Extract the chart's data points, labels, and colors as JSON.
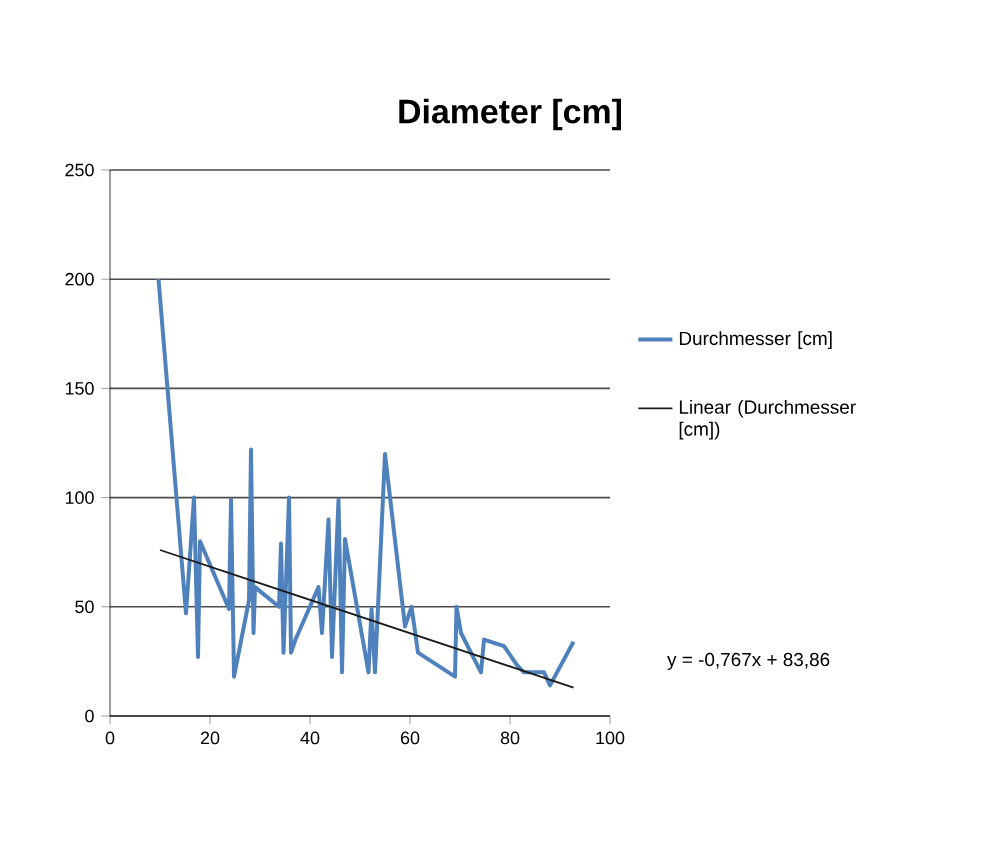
{
  "chart_data": {
    "type": "line",
    "title": "Diameter [cm]",
    "xlim": [
      0,
      100
    ],
    "xticks": [
      0,
      20,
      40,
      60,
      80,
      100
    ],
    "ylim": [
      0,
      250
    ],
    "yticks": [
      0,
      50,
      100,
      150,
      200,
      250
    ],
    "grid": "y",
    "legend": "right",
    "marker": "none",
    "annotations": [
      "y = -0,767x + 83,86"
    ],
    "series": [
      {
        "name": "Durchmesser [cm]",
        "color": "#4f81bd",
        "x": [
          9.7,
          15.2,
          16.8,
          17.6,
          18,
          23.8,
          24.2,
          24.8,
          27.8,
          28.2,
          28.7,
          29,
          33.8,
          34.2,
          34.7,
          35.8,
          36.2,
          37.1,
          41.7,
          42.4,
          43.7,
          44.4,
          45.7,
          46.4,
          47,
          51.7,
          52.3,
          53,
          55,
          59,
          60.3,
          61.6,
          69,
          69.3,
          70.2,
          74.2,
          74.8,
          78.8,
          81.5,
          82.8,
          86.8,
          88,
          92.7
        ],
        "values": [
          200,
          47,
          100,
          27,
          80,
          49,
          99,
          18,
          53,
          122,
          38,
          59,
          50,
          79,
          29,
          100,
          29,
          35,
          59,
          38,
          90,
          27,
          99,
          20,
          81,
          20,
          49,
          20,
          120,
          41,
          50,
          29,
          18,
          50,
          38,
          20,
          35,
          32,
          23,
          20,
          20,
          14,
          34
        ]
      },
      {
        "name": "Linear (Durchmesser [cm])",
        "color": "#1a1a1a",
        "type": "line",
        "x": [
          10,
          92.7
        ],
        "values": [
          76,
          13
        ]
      }
    ]
  }
}
